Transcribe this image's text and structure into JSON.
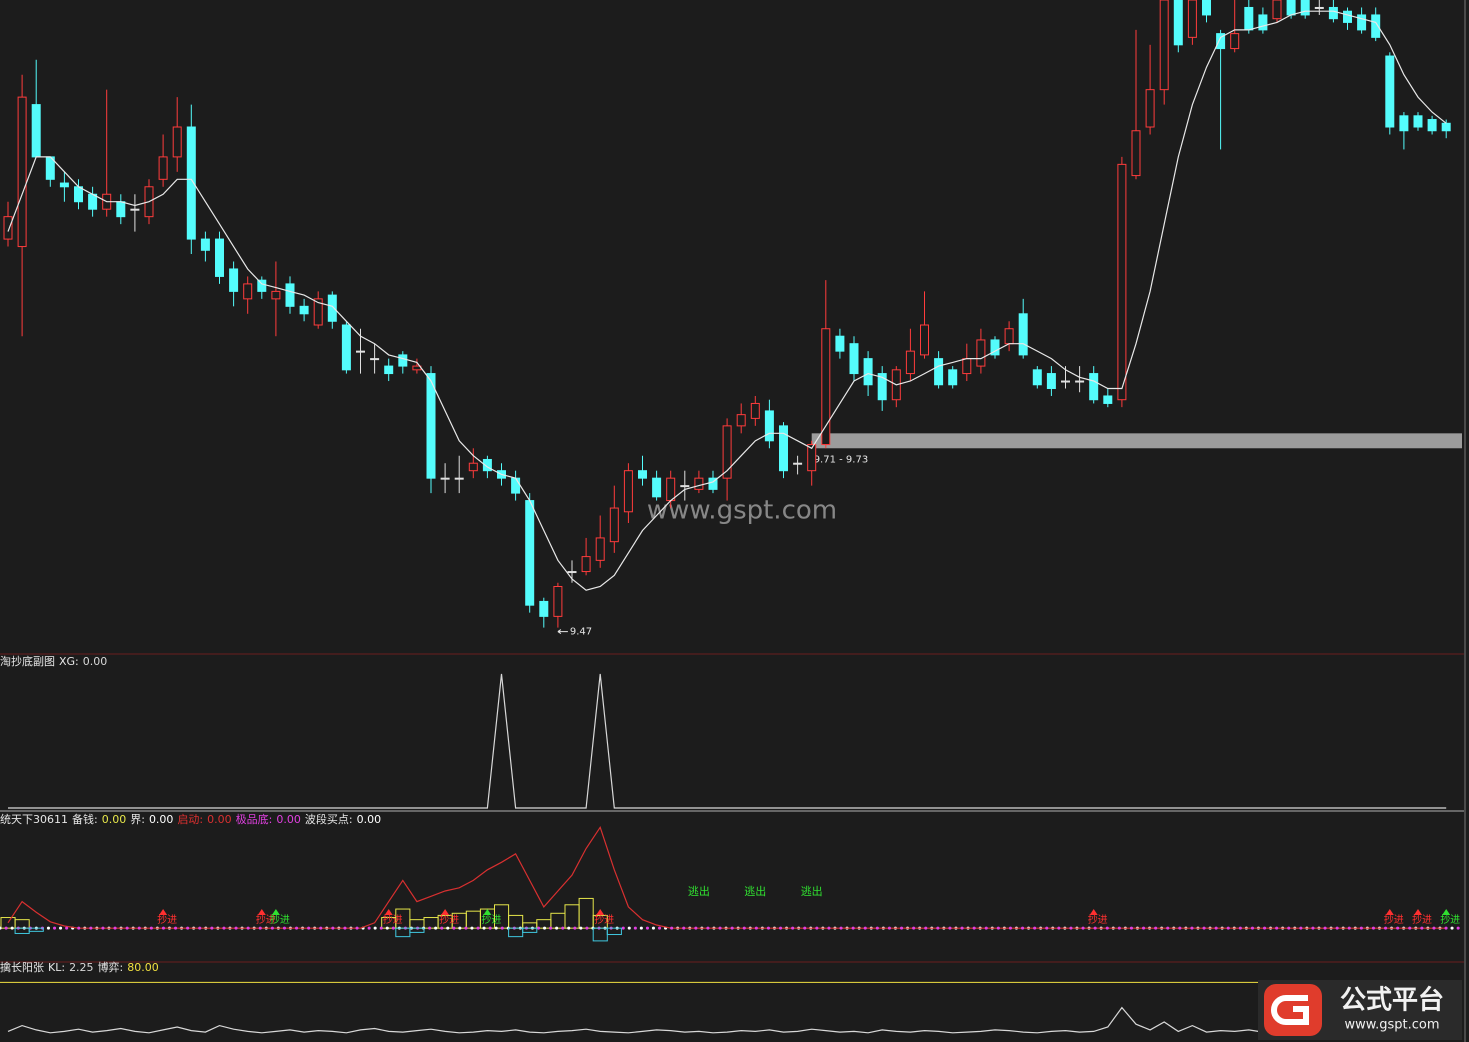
{
  "chart_data": [
    {
      "type": "candlestick",
      "up_color": "#ff3c3c",
      "down_color": "#54fcfc",
      "flat_color": "#e0e0e0",
      "ylim": [
        9.44,
        10.31
      ],
      "open": [
        9.99,
        9.98,
        10.17,
        10.1,
        10.065,
        10.06,
        10.05,
        10.03,
        10.04,
        10.03,
        10.02,
        10.07,
        10.1,
        10.14,
        9.99,
        9.99,
        9.95,
        9.91,
        9.935,
        9.91,
        9.93,
        9.9,
        9.875,
        9.915,
        9.875,
        9.84,
        9.83,
        9.82,
        9.835,
        9.815,
        9.81,
        9.67,
        9.67,
        9.68,
        9.695,
        9.68,
        9.67,
        9.64,
        9.505,
        9.485,
        9.545,
        9.545,
        9.56,
        9.585,
        9.625,
        9.68,
        9.67,
        9.64,
        9.66,
        9.655,
        9.67,
        9.67,
        9.74,
        9.75,
        9.76,
        9.74,
        9.69,
        9.68,
        9.715,
        9.86,
        9.85,
        9.83,
        9.81,
        9.775,
        9.81,
        9.835,
        9.83,
        9.815,
        9.81,
        9.82,
        9.855,
        9.85,
        9.89,
        9.815,
        9.81,
        9.8,
        9.8,
        9.81,
        9.78,
        9.775,
        10.075,
        10.14,
        10.19,
        10.31,
        10.26,
        10.31,
        10.265,
        10.245,
        10.3,
        10.29,
        10.285,
        10.31,
        10.31,
        10.3,
        10.3,
        10.295,
        10.29,
        10.29,
        10.235,
        10.155,
        10.155,
        10.15,
        10.145
      ],
      "high": [
        10.04,
        10.21,
        10.23,
        10.1,
        10.08,
        10.07,
        10.06,
        10.19,
        10.05,
        10.05,
        10.07,
        10.13,
        10.18,
        10.17,
        10.0,
        10.0,
        9.96,
        9.94,
        9.94,
        9.96,
        9.94,
        9.91,
        9.92,
        9.92,
        9.88,
        9.87,
        9.85,
        9.83,
        9.84,
        9.83,
        9.82,
        9.69,
        9.7,
        9.71,
        9.7,
        9.69,
        9.68,
        9.65,
        9.51,
        9.53,
        9.56,
        9.59,
        9.62,
        9.66,
        9.69,
        9.7,
        9.68,
        9.68,
        9.68,
        9.68,
        9.68,
        9.75,
        9.77,
        9.78,
        9.775,
        9.745,
        9.7,
        9.72,
        9.935,
        9.87,
        9.86,
        9.84,
        9.82,
        9.82,
        9.87,
        9.92,
        9.84,
        9.82,
        9.85,
        9.87,
        9.86,
        9.88,
        9.91,
        9.82,
        9.82,
        9.82,
        9.82,
        9.82,
        9.79,
        10.1,
        10.27,
        10.25,
        10.31,
        10.31,
        10.31,
        10.31,
        10.27,
        10.31,
        10.31,
        10.3,
        10.31,
        10.31,
        10.31,
        10.31,
        10.31,
        10.3,
        10.3,
        10.3,
        10.24,
        10.16,
        10.16,
        10.155,
        10.15
      ],
      "low": [
        9.98,
        9.86,
        10.1,
        10.06,
        10.04,
        10.03,
        10.02,
        10.02,
        10.01,
        10.0,
        10.01,
        10.06,
        10.08,
        9.97,
        9.96,
        9.93,
        9.9,
        9.89,
        9.91,
        9.86,
        9.89,
        9.88,
        9.87,
        9.87,
        9.81,
        9.81,
        9.81,
        9.8,
        9.81,
        9.81,
        9.65,
        9.65,
        9.65,
        9.67,
        9.67,
        9.66,
        9.64,
        9.49,
        9.47,
        9.47,
        9.53,
        9.54,
        9.55,
        9.57,
        9.61,
        9.66,
        9.64,
        9.63,
        9.64,
        9.65,
        9.65,
        9.64,
        9.73,
        9.74,
        9.71,
        9.67,
        9.675,
        9.66,
        9.71,
        9.83,
        9.8,
        9.78,
        9.76,
        9.765,
        9.8,
        9.83,
        9.79,
        9.79,
        9.8,
        9.81,
        9.83,
        9.84,
        9.83,
        9.79,
        9.78,
        9.79,
        9.785,
        9.77,
        9.765,
        9.765,
        10.07,
        10.13,
        10.17,
        10.24,
        10.25,
        10.28,
        10.11,
        10.24,
        10.265,
        10.265,
        10.28,
        10.285,
        10.285,
        10.29,
        10.28,
        10.27,
        10.265,
        10.255,
        10.13,
        10.11,
        10.135,
        10.13,
        10.125
      ],
      "close": [
        10.02,
        10.18,
        10.1,
        10.07,
        10.06,
        10.04,
        10.03,
        10.05,
        10.02,
        10.03,
        10.06,
        10.1,
        10.14,
        9.99,
        9.975,
        9.94,
        9.92,
        9.93,
        9.92,
        9.92,
        9.9,
        9.89,
        9.91,
        9.88,
        9.815,
        9.84,
        9.83,
        9.81,
        9.82,
        9.82,
        9.67,
        9.67,
        9.67,
        9.69,
        9.68,
        9.67,
        9.65,
        9.5,
        9.485,
        9.525,
        9.545,
        9.565,
        9.59,
        9.63,
        9.68,
        9.67,
        9.645,
        9.67,
        9.66,
        9.67,
        9.655,
        9.74,
        9.755,
        9.77,
        9.72,
        9.68,
        9.69,
        9.715,
        9.87,
        9.84,
        9.81,
        9.795,
        9.775,
        9.815,
        9.84,
        9.875,
        9.795,
        9.795,
        9.83,
        9.855,
        9.835,
        9.87,
        9.835,
        9.795,
        9.79,
        9.8,
        9.8,
        9.775,
        9.77,
        10.09,
        10.135,
        10.19,
        10.31,
        10.25,
        10.31,
        10.29,
        10.245,
        10.265,
        10.27,
        10.27,
        10.31,
        10.29,
        10.29,
        10.3,
        10.285,
        10.28,
        10.27,
        10.26,
        10.14,
        10.135,
        10.14,
        10.135,
        10.135
      ],
      "ma": {
        "color": "#e8e8e8",
        "values": [
          10.0,
          10.05,
          10.1,
          10.1,
          10.08,
          10.06,
          10.05,
          10.04,
          10.04,
          10.035,
          10.04,
          10.05,
          10.07,
          10.07,
          10.04,
          10.01,
          9.98,
          9.95,
          9.93,
          9.925,
          9.92,
          9.915,
          9.905,
          9.9,
          9.88,
          9.86,
          9.85,
          9.835,
          9.83,
          9.825,
          9.8,
          9.76,
          9.72,
          9.7,
          9.685,
          9.675,
          9.67,
          9.64,
          9.6,
          9.56,
          9.535,
          9.52,
          9.525,
          9.54,
          9.57,
          9.6,
          9.62,
          9.64,
          9.655,
          9.66,
          9.665,
          9.68,
          9.7,
          9.72,
          9.73,
          9.73,
          9.72,
          9.71,
          9.74,
          9.77,
          9.8,
          9.81,
          9.805,
          9.795,
          9.8,
          9.81,
          9.82,
          9.825,
          9.83,
          9.83,
          9.84,
          9.85,
          9.85,
          9.84,
          9.83,
          9.815,
          9.805,
          9.8,
          9.79,
          9.79,
          9.85,
          9.92,
          10.01,
          10.1,
          10.17,
          10.22,
          10.26,
          10.27,
          10.27,
          10.275,
          10.28,
          10.29,
          10.295,
          10.295,
          10.295,
          10.29,
          10.285,
          10.28,
          10.25,
          10.21,
          10.18,
          10.16,
          10.145
        ]
      },
      "band": {
        "range": [
          9.71,
          9.73
        ],
        "label": "9.71 - 9.73",
        "start": 57,
        "color": "#9c9c9c"
      },
      "low_marker": {
        "value": 9.47,
        "x": 39
      }
    },
    {
      "type": "line",
      "title": "淘抄底副图",
      "ylim": [
        0,
        1
      ],
      "series": [
        {
          "name": "XG:",
          "readout": "0.00",
          "color": "#d8d8d8",
          "values": [
            0,
            0,
            0,
            0,
            0,
            0,
            0,
            0,
            0,
            0,
            0,
            0,
            0,
            0,
            0,
            0,
            0,
            0,
            0,
            0,
            0,
            0,
            0,
            0,
            0,
            0,
            0,
            0,
            0,
            0,
            0,
            0,
            0,
            0,
            0,
            1,
            0,
            0,
            0,
            0,
            0,
            0,
            1,
            0,
            0,
            0,
            0,
            0,
            0,
            0,
            0,
            0,
            0,
            0,
            0,
            0,
            0,
            0,
            0,
            0,
            0,
            0,
            0,
            0,
            0,
            0,
            0,
            0,
            0,
            0,
            0,
            0,
            0,
            0,
            0,
            0,
            0,
            0,
            0,
            0,
            0,
            0,
            0,
            0,
            0,
            0,
            0,
            0,
            0,
            0,
            0,
            0,
            0,
            0,
            0,
            0,
            0,
            0,
            0,
            0,
            0,
            0,
            0
          ]
        }
      ]
    },
    {
      "type": "indicator",
      "title": "统天下30611",
      "ylim": [
        -30,
        100
      ],
      "series": [
        {
          "name": "备钱:",
          "readout": "0.00",
          "color": "#e6e64a",
          "style": "step",
          "values": [
            10,
            8,
            0,
            0,
            0,
            0,
            0,
            0,
            0,
            0,
            0,
            0,
            0,
            0,
            0,
            0,
            0,
            0,
            0,
            0,
            0,
            0,
            0,
            0,
            0,
            0,
            0,
            10,
            18,
            8,
            10,
            12,
            14,
            16,
            18,
            22,
            12,
            5,
            8,
            14,
            22,
            28,
            12,
            0,
            0,
            0,
            0,
            0,
            0,
            0,
            0,
            0,
            0,
            0,
            0,
            0,
            0,
            0,
            0,
            0,
            0,
            0,
            0,
            0,
            0,
            0,
            0,
            0,
            0,
            0,
            0,
            0,
            0,
            0,
            0,
            0,
            0,
            0,
            0,
            0,
            0,
            0,
            0,
            0,
            0,
            0,
            0,
            0,
            0,
            0,
            0,
            0,
            0,
            0,
            0,
            0,
            0,
            0,
            0,
            0,
            0,
            0,
            0
          ]
        },
        {
          "name": "界:",
          "readout": "0.00",
          "color": "#ffffff",
          "style": "dots",
          "level": 0
        },
        {
          "name": "启动:",
          "readout": "0.00",
          "color": "#d83030",
          "name_color": "#e03030",
          "style": "line",
          "values": [
            5,
            25,
            15,
            6,
            2,
            0,
            0,
            0,
            0,
            0,
            0,
            0,
            0,
            0,
            0,
            0,
            0,
            0,
            0,
            0,
            0,
            0,
            0,
            0,
            0,
            0,
            5,
            25,
            45,
            25,
            30,
            35,
            38,
            45,
            55,
            62,
            70,
            45,
            20,
            35,
            50,
            75,
            95,
            55,
            20,
            8,
            3,
            0,
            0,
            0,
            0,
            0,
            0,
            0,
            0,
            0,
            0,
            0,
            0,
            0,
            0,
            0,
            0,
            0,
            0,
            0,
            0,
            0,
            0,
            0,
            0,
            0,
            0,
            0,
            0,
            0,
            0,
            0,
            0,
            0,
            0,
            0,
            0,
            0,
            0,
            0,
            0,
            0,
            0,
            0,
            0,
            0,
            0,
            0,
            0,
            0,
            0,
            0,
            0,
            0,
            0,
            0,
            0
          ]
        },
        {
          "name": "极品底:",
          "readout": "0.00",
          "color": "#e040e0",
          "name_color": "#e040e0",
          "style": "dots",
          "level": 0
        },
        {
          "color": "#40c8e0",
          "style": "step",
          "values": [
            0,
            -5,
            -3,
            0,
            0,
            0,
            0,
            0,
            0,
            0,
            0,
            0,
            0,
            0,
            0,
            0,
            0,
            0,
            0,
            0,
            0,
            0,
            0,
            0,
            0,
            0,
            0,
            0,
            -8,
            -4,
            0,
            0,
            0,
            0,
            0,
            0,
            -8,
            -4,
            0,
            0,
            0,
            0,
            -12,
            -6,
            0,
            0,
            0,
            0,
            0,
            0,
            0,
            0,
            0,
            0,
            0,
            0,
            0,
            0,
            0,
            0,
            0,
            0,
            0,
            0,
            0,
            0,
            0,
            0,
            0,
            0,
            0,
            0,
            0,
            0,
            0,
            0,
            0,
            0,
            0,
            0,
            0,
            0,
            0,
            0,
            0,
            0,
            0,
            0,
            0,
            0,
            0,
            0,
            0,
            0,
            0,
            0,
            0,
            0,
            0,
            0,
            0
          ]
        },
        {
          "name": "波段买点:",
          "readout": "0.00",
          "color": "#ffffff",
          "style": "signals",
          "signals": [
            {
              "x": 11,
              "label": "抄进",
              "color": "#ff3030"
            },
            {
              "x": 18,
              "label": "抄进",
              "color": "#ff3030"
            },
            {
              "x": 19,
              "label": "抄进",
              "color": "#30e030"
            },
            {
              "x": 27,
              "label": "抄进",
              "color": "#ff3030"
            },
            {
              "x": 31,
              "label": "抄进",
              "color": "#ff3030"
            },
            {
              "x": 34,
              "label": "抄进",
              "color": "#30e030"
            },
            {
              "x": 42,
              "label": "抄进",
              "color": "#ff3030"
            },
            {
              "x": 77,
              "label": "抄进",
              "color": "#ff3030"
            },
            {
              "x": 98,
              "label": "抄进",
              "color": "#ff3030"
            },
            {
              "x": 100,
              "label": "抄进",
              "color": "#ff3030"
            },
            {
              "x": 102,
              "label": "抄进",
              "color": "#30e030"
            },
            {
              "x": 49,
              "label": "逃出",
              "color": "#30e030",
              "sell": true
            },
            {
              "x": 53,
              "label": "逃出",
              "color": "#30e030",
              "sell": true
            },
            {
              "x": 57,
              "label": "逃出",
              "color": "#30e030",
              "sell": true
            }
          ]
        }
      ]
    },
    {
      "type": "line",
      "title": "擒长阳张",
      "ylim": [
        0,
        100
      ],
      "series": [
        {
          "name": "KL:",
          "readout": "2.25",
          "color": "#d8d8d8",
          "values": [
            12,
            20,
            14,
            10,
            12,
            15,
            11,
            13,
            16,
            12,
            10,
            14,
            18,
            13,
            11,
            20,
            15,
            12,
            10,
            12,
            14,
            11,
            13,
            12,
            10,
            14,
            16,
            12,
            11,
            13,
            15,
            12,
            10,
            11,
            13,
            12,
            14,
            11,
            10,
            12,
            13,
            15,
            12,
            11,
            10,
            12,
            14,
            13,
            11,
            12,
            10,
            11,
            13,
            12,
            14,
            11,
            12,
            15,
            13,
            11,
            12,
            10,
            14,
            12,
            11,
            13,
            12,
            10,
            11,
            12,
            14,
            13,
            11,
            10,
            12,
            13,
            11,
            12,
            18,
            45,
            22,
            14,
            25,
            12,
            20,
            11,
            13,
            12,
            14,
            11,
            12,
            13,
            11,
            12,
            10,
            12,
            14,
            11,
            13,
            12,
            11,
            10,
            2.25
          ]
        },
        {
          "name": "博弈:",
          "readout": "80.00",
          "color": "#f0e040",
          "level": 80
        }
      ]
    }
  ],
  "watermark": "www.gspt.com",
  "logo": {
    "title": "公式平台",
    "url": "www.gspt.com"
  }
}
